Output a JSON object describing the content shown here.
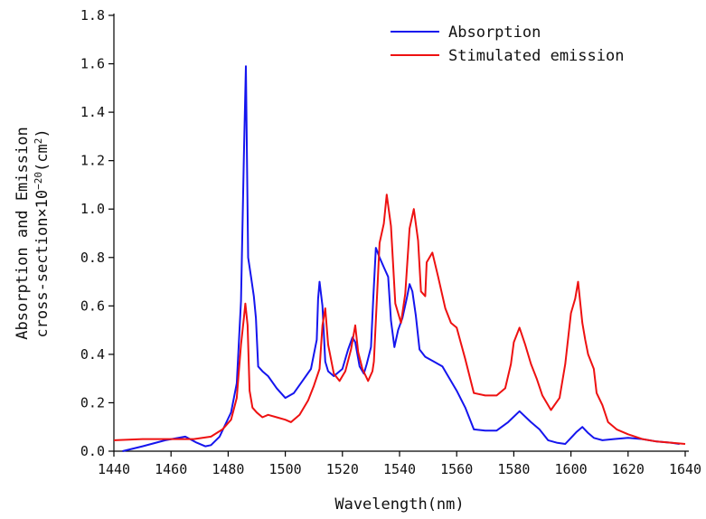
{
  "chart_data": {
    "type": "line",
    "xlabel": "Wavelength(nm)",
    "ylabel": {
      "line1": "Absorption and Emission",
      "line2_prefix": "cross-section×10",
      "line2_sup": "−20",
      "line2_mid": "(cm",
      "line2_sup2": "2",
      "line2_suffix": ")"
    },
    "xlim": [
      1440,
      1640
    ],
    "ylim": [
      0,
      1.8
    ],
    "x_ticks": [
      1440,
      1460,
      1480,
      1500,
      1520,
      1540,
      1560,
      1580,
      1600,
      1620,
      1640
    ],
    "x_tick_labels": [
      "1440",
      "1460",
      "1480",
      "1500",
      "1520",
      "1540",
      "1560",
      "1580",
      "1600",
      "1620",
      "1640"
    ],
    "y_ticks": [
      0,
      0.2,
      0.4,
      0.6,
      0.8,
      1.0,
      1.2,
      1.4,
      1.6,
      1.8
    ],
    "y_tick_labels": [
      "0.0",
      "0.2",
      "0.4",
      "0.6",
      "0.8",
      "1.0",
      "1.2",
      "1.4",
      "1.6",
      "1.8"
    ],
    "grid": false,
    "legend_position": "top-right",
    "series": [
      {
        "name": "Absorption",
        "color": "#1515ee",
        "x": [
          1443,
          1450,
          1458,
          1465,
          1469,
          1472,
          1474,
          1477,
          1481,
          1483,
          1484.5,
          1485.5,
          1486.2,
          1487,
          1488,
          1489,
          1489.7,
          1490.5,
          1492,
          1494,
          1497,
          1500,
          1503,
          1506,
          1509,
          1511,
          1511.5,
          1512,
          1513,
          1514,
          1515,
          1517,
          1520,
          1522,
          1523.5,
          1524.5,
          1526,
          1527.5,
          1528.5,
          1530,
          1530.8,
          1531.7,
          1533,
          1534.5,
          1536,
          1537,
          1538.2,
          1539.5,
          1541,
          1542.5,
          1543.5,
          1544.5,
          1545.7,
          1547,
          1549,
          1552,
          1555,
          1557,
          1560,
          1563,
          1566,
          1570,
          1574,
          1578,
          1582,
          1586,
          1589,
          1592,
          1595,
          1598,
          1600,
          1602,
          1604,
          1606,
          1608,
          1611,
          1615,
          1620,
          1625,
          1630,
          1635,
          1638
        ],
        "y": [
          0.0,
          0.02,
          0.045,
          0.06,
          0.035,
          0.02,
          0.025,
          0.06,
          0.16,
          0.28,
          0.62,
          1.22,
          1.59,
          0.8,
          0.72,
          0.64,
          0.55,
          0.35,
          0.33,
          0.31,
          0.26,
          0.22,
          0.24,
          0.29,
          0.34,
          0.46,
          0.63,
          0.7,
          0.6,
          0.37,
          0.33,
          0.31,
          0.34,
          0.42,
          0.47,
          0.45,
          0.35,
          0.32,
          0.36,
          0.43,
          0.63,
          0.84,
          0.8,
          0.76,
          0.72,
          0.54,
          0.43,
          0.5,
          0.55,
          0.63,
          0.69,
          0.66,
          0.56,
          0.42,
          0.39,
          0.37,
          0.35,
          0.31,
          0.25,
          0.18,
          0.09,
          0.085,
          0.085,
          0.12,
          0.165,
          0.12,
          0.09,
          0.045,
          0.035,
          0.03,
          0.055,
          0.08,
          0.1,
          0.075,
          0.055,
          0.045,
          0.05,
          0.055,
          0.05,
          0.04,
          0.035,
          0.03
        ]
      },
      {
        "name": "Stimulated emission",
        "color": "#ee1111",
        "x": [
          1440,
          1450,
          1460,
          1468,
          1474,
          1478,
          1481,
          1483,
          1484.5,
          1485.5,
          1486,
          1486.8,
          1487.5,
          1488.5,
          1490,
          1492,
          1494,
          1497,
          1500,
          1502,
          1505,
          1508,
          1510,
          1512,
          1513,
          1514,
          1515,
          1517,
          1519,
          1521,
          1523,
          1524.5,
          1525.5,
          1527,
          1529,
          1530.5,
          1531,
          1533,
          1534.5,
          1535.5,
          1537,
          1538.5,
          1540.5,
          1542,
          1543.5,
          1545,
          1546.5,
          1547.5,
          1549,
          1549.5,
          1551.5,
          1553.5,
          1556,
          1558,
          1560,
          1563,
          1566,
          1570,
          1574,
          1577,
          1579,
          1580,
          1582,
          1584,
          1586,
          1588,
          1590,
          1593,
          1596,
          1598,
          1600,
          1601.5,
          1602.5,
          1604,
          1605,
          1606,
          1608,
          1609,
          1611,
          1613,
          1616,
          1620,
          1625,
          1630,
          1635,
          1640
        ],
        "y": [
          0.045,
          0.05,
          0.05,
          0.05,
          0.06,
          0.09,
          0.13,
          0.22,
          0.44,
          0.55,
          0.61,
          0.52,
          0.25,
          0.18,
          0.16,
          0.14,
          0.15,
          0.14,
          0.13,
          0.12,
          0.15,
          0.21,
          0.27,
          0.34,
          0.52,
          0.59,
          0.44,
          0.32,
          0.29,
          0.33,
          0.42,
          0.52,
          0.41,
          0.34,
          0.29,
          0.33,
          0.37,
          0.86,
          0.94,
          1.06,
          0.93,
          0.61,
          0.53,
          0.65,
          0.92,
          1.0,
          0.87,
          0.66,
          0.64,
          0.78,
          0.82,
          0.72,
          0.59,
          0.53,
          0.51,
          0.38,
          0.24,
          0.23,
          0.23,
          0.26,
          0.36,
          0.45,
          0.51,
          0.44,
          0.36,
          0.3,
          0.23,
          0.17,
          0.22,
          0.36,
          0.57,
          0.63,
          0.7,
          0.53,
          0.46,
          0.4,
          0.34,
          0.24,
          0.19,
          0.12,
          0.09,
          0.07,
          0.05,
          0.04,
          0.035,
          0.03
        ]
      }
    ]
  }
}
